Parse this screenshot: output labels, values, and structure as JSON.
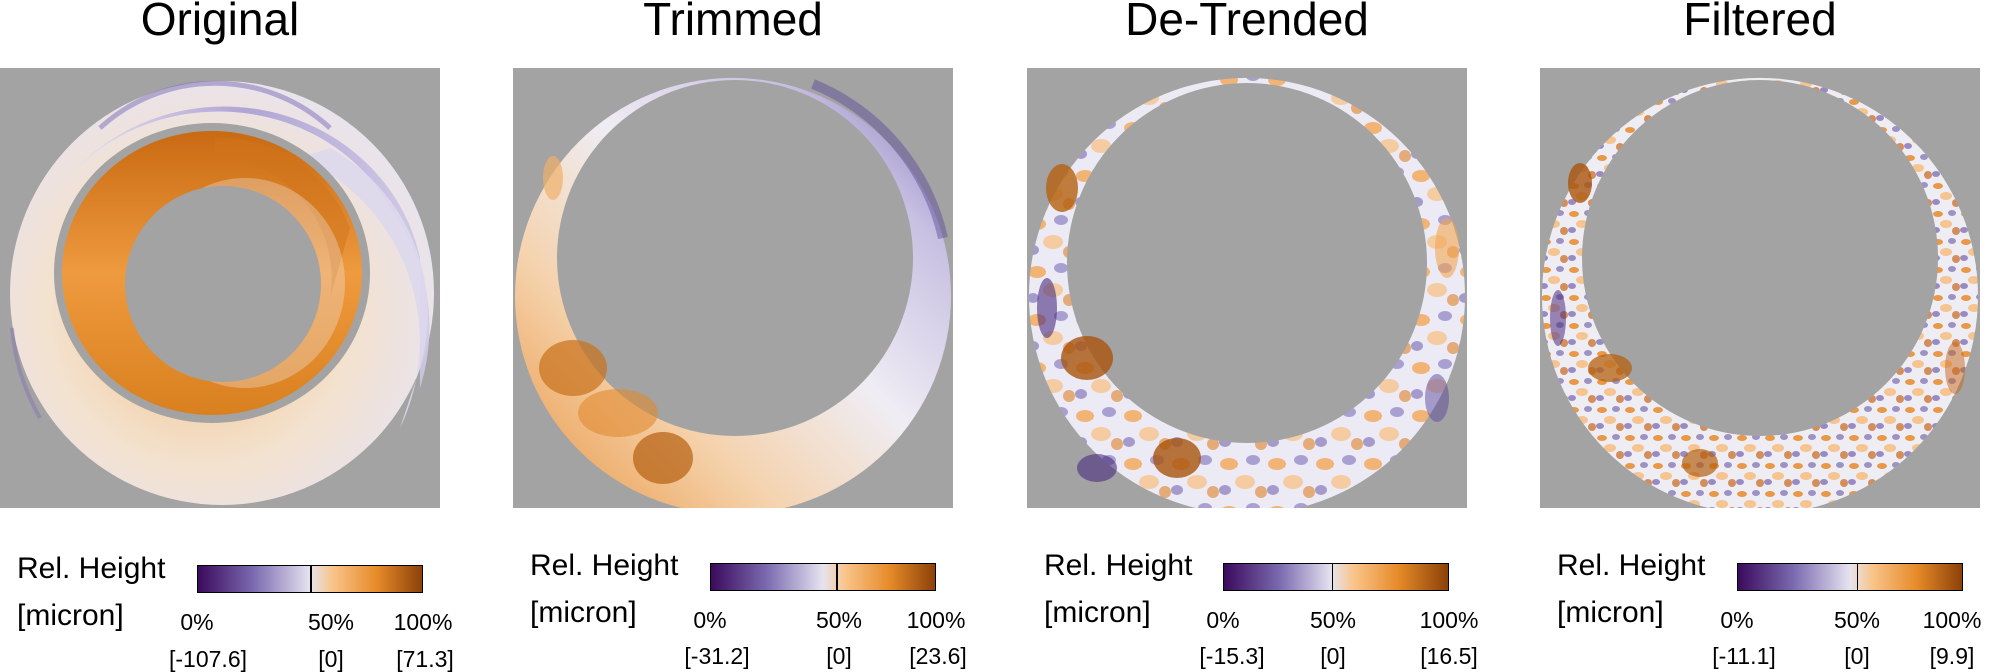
{
  "panels": [
    {
      "title": "Original",
      "legend": {
        "label_line1": "Rel. Height",
        "label_line2": "[micron]",
        "pct_low": "0%",
        "pct_mid": "50%",
        "pct_high": "100%",
        "val_low": "[-107.6]",
        "val_mid": "[0]",
        "val_high": "[71.3]"
      }
    },
    {
      "title": "Trimmed",
      "legend": {
        "label_line1": "Rel. Height",
        "label_line2": "[micron]",
        "pct_low": "0%",
        "pct_mid": "50%",
        "pct_high": "100%",
        "val_low": "[-31.2]",
        "val_mid": "[0]",
        "val_high": "[23.6]"
      }
    },
    {
      "title": "De-Trended",
      "legend": {
        "label_line1": "Rel. Height",
        "label_line2": "[micron]",
        "pct_low": "0%",
        "pct_mid": "50%",
        "pct_high": "100%",
        "val_low": "[-15.3]",
        "val_mid": "[0]",
        "val_high": "[16.5]"
      }
    },
    {
      "title": "Filtered",
      "legend": {
        "label_line1": "Rel. Height",
        "label_line2": "[micron]",
        "pct_low": "0%",
        "pct_mid": "50%",
        "pct_high": "100%",
        "val_low": "[-11.1]",
        "val_mid": "[0]",
        "val_high": "[9.9]"
      }
    }
  ],
  "colors": {
    "background_mask": "#a3a3a3",
    "low": "#3b0a5c",
    "mid_low": "#b9b0dd",
    "mid": "#f4f2f4",
    "mid_high": "#f8b266",
    "high": "#7f3b08"
  }
}
